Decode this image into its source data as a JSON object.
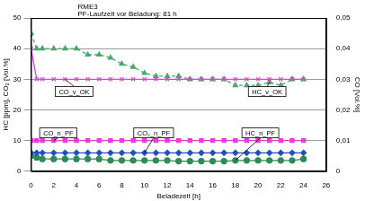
{
  "chart_data": {
    "type": "line",
    "title": "RME3",
    "subtitle": "PF-Laufzeit vor Beladung: 81 h",
    "x_label": "Beladezeit [h]",
    "y_label": "HC [ppm], CO₂ [Vol.%]",
    "y2_label": "CO [Vol.%]",
    "x": [
      0,
      0.5,
      1,
      2,
      3,
      4,
      5,
      6,
      7,
      8,
      9,
      10,
      11,
      12,
      13,
      14,
      15,
      16,
      17,
      18,
      19,
      20,
      21,
      22,
      23,
      24
    ],
    "series": [
      {
        "name": "CO_v_OK",
        "color": "#e040d8",
        "axis": "y2",
        "marker": "cross",
        "line_style": "solid",
        "values": [
          0.04,
          0.03,
          0.03,
          0.03,
          0.03,
          0.03,
          0.03,
          0.03,
          0.03,
          0.03,
          0.03,
          0.03,
          0.03,
          0.03,
          0.03,
          0.03,
          0.03,
          0.03,
          0.03,
          0.03,
          0.03,
          0.03,
          0.03,
          0.03,
          0.03,
          0.03
        ]
      },
      {
        "name": "HC_v_OK",
        "color": "#4aa86a",
        "marker": "triangle",
        "line_style": "dashed",
        "values": [
          45,
          40,
          40,
          40,
          40,
          40,
          38,
          38,
          37,
          35,
          34,
          32,
          31,
          31,
          31,
          30,
          30,
          30,
          30,
          28,
          28,
          28,
          29,
          28,
          30,
          30
        ]
      },
      {
        "name": "CO_n_PF",
        "color": "#e040d8",
        "axis": "y2",
        "marker": "square",
        "line_style": "solid",
        "values": [
          0.01,
          0.01,
          0.01,
          0.01,
          0.01,
          0.01,
          0.01,
          0.01,
          0.01,
          0.01,
          0.01,
          0.01,
          0.01,
          0.01,
          0.01,
          0.01,
          0.01,
          0.01,
          0.01,
          0.01,
          0.01,
          0.01,
          0.01,
          0.01,
          0.01,
          0.01
        ]
      },
      {
        "name": "CO₂_n_PF",
        "color": "#2050c0",
        "marker": "diamond",
        "line_style": "solid",
        "values": [
          6,
          6,
          6,
          6,
          6,
          6,
          6,
          6,
          6,
          6,
          6,
          6,
          6,
          6,
          6,
          6,
          6,
          6,
          6,
          6,
          6,
          6,
          6,
          6,
          6,
          6
        ]
      },
      {
        "name": "HC_n_PF",
        "color": "#2e8b57",
        "marker": "circle",
        "line_style": "solid",
        "values": [
          5,
          4.5,
          4,
          4,
          4,
          4,
          4,
          4,
          3.5,
          3.5,
          3.5,
          3.5,
          3.5,
          3.5,
          3.3,
          3.3,
          3.3,
          3.3,
          3.3,
          3.5,
          3.5,
          3.5,
          3.5,
          3.5,
          3.5,
          4
        ]
      }
    ],
    "xlim": [
      0,
      26
    ],
    "xticks": [
      0,
      2,
      4,
      6,
      8,
      10,
      12,
      14,
      16,
      18,
      20,
      22,
      24,
      26
    ],
    "ylim": [
      0,
      50
    ],
    "yticks": [
      0,
      10,
      20,
      30,
      40,
      50
    ],
    "y2lim": [
      0,
      0.05
    ],
    "y2ticks": [
      0,
      {
        "value": 0.01,
        "label": "0,01"
      },
      {
        "value": 0.02,
        "label": "0,02"
      },
      {
        "value": 0.03,
        "label": "0,03"
      },
      {
        "value": 0.04,
        "label": "0,04"
      },
      {
        "value": 0.05,
        "label": "0,05"
      }
    ],
    "grid": true,
    "legend": false
  }
}
